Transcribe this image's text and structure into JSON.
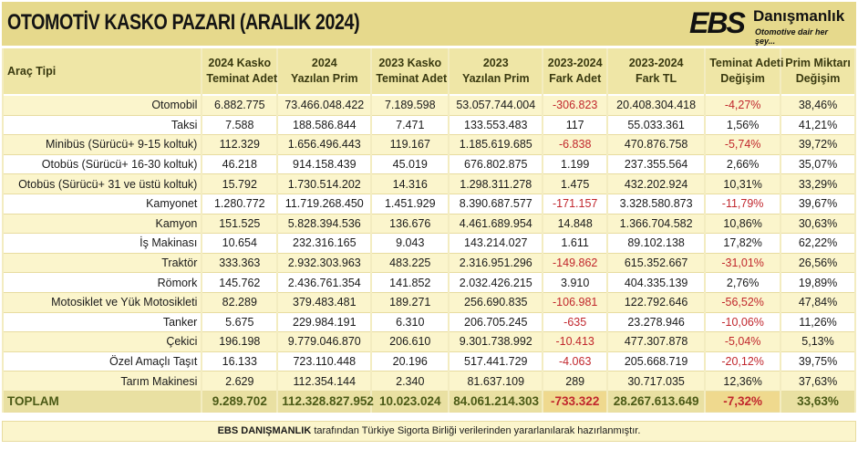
{
  "title": "OTOMOTİV KASKO PAZARI  (ARALIK 2024)",
  "logo": {
    "ebs": "EBS",
    "name": "Danışmanlık",
    "slogan": "Otomotive dair her şey..."
  },
  "table": {
    "headers": [
      {
        "line1": "Araç Tipi",
        "line2": ""
      },
      {
        "line1": "2024 Kasko",
        "line2": "Teminat Adet"
      },
      {
        "line1": "2024",
        "line2": "Yazılan Prim"
      },
      {
        "line1": "2023 Kasko",
        "line2": "Teminat Adet"
      },
      {
        "line1": "2023",
        "line2": "Yazılan Prim"
      },
      {
        "line1": "2023-2024",
        "line2": "Fark Adet"
      },
      {
        "line1": "2023-2024",
        "line2": "Fark TL"
      },
      {
        "line1": "Teminat Adeti",
        "line2": "Değişim"
      },
      {
        "line1": "Prim Miktarı",
        "line2": "Değişim"
      }
    ],
    "rows": [
      [
        "Otomobil",
        "6.882.775",
        "73.466.048.422",
        "7.189.598",
        "53.057.744.004",
        "-306.823",
        "20.408.304.418",
        "-4,27%",
        "38,46%"
      ],
      [
        "Taksi",
        "7.588",
        "188.586.844",
        "7.471",
        "133.553.483",
        "117",
        "55.033.361",
        "1,56%",
        "41,21%"
      ],
      [
        "Minibüs (Sürücü+ 9-15 koltuk)",
        "112.329",
        "1.656.496.443",
        "119.167",
        "1.185.619.685",
        "-6.838",
        "470.876.758",
        "-5,74%",
        "39,72%"
      ],
      [
        "Otobüs (Sürücü+ 16-30 koltuk)",
        "46.218",
        "914.158.439",
        "45.019",
        "676.802.875",
        "1.199",
        "237.355.564",
        "2,66%",
        "35,07%"
      ],
      [
        "Otobüs (Sürücü+ 31 ve üstü koltuk)",
        "15.792",
        "1.730.514.202",
        "14.316",
        "1.298.311.278",
        "1.475",
        "432.202.924",
        "10,31%",
        "33,29%"
      ],
      [
        "Kamyonet",
        "1.280.772",
        "11.719.268.450",
        "1.451.929",
        "8.390.687.577",
        "-171.157",
        "3.328.580.873",
        "-11,79%",
        "39,67%"
      ],
      [
        "Kamyon",
        "151.525",
        "5.828.394.536",
        "136.676",
        "4.461.689.954",
        "14.848",
        "1.366.704.582",
        "10,86%",
        "30,63%"
      ],
      [
        "İş Makinası",
        "10.654",
        "232.316.165",
        "9.043",
        "143.214.027",
        "1.611",
        "89.102.138",
        "17,82%",
        "62,22%"
      ],
      [
        "Traktör",
        "333.363",
        "2.932.303.963",
        "483.225",
        "2.316.951.296",
        "-149.862",
        "615.352.667",
        "-31,01%",
        "26,56%"
      ],
      [
        "Römork",
        "145.762",
        "2.436.761.354",
        "141.852",
        "2.032.426.215",
        "3.910",
        "404.335.139",
        "2,76%",
        "19,89%"
      ],
      [
        "Motosiklet ve Yük Motosikleti",
        "82.289",
        "379.483.481",
        "189.271",
        "256.690.835",
        "-106.981",
        "122.792.646",
        "-56,52%",
        "47,84%"
      ],
      [
        "Tanker",
        "5.675",
        "229.984.191",
        "6.310",
        "206.705.245",
        "-635",
        "23.278.946",
        "-10,06%",
        "11,26%"
      ],
      [
        "Çekici",
        "196.198",
        "9.779.046.870",
        "206.610",
        "9.301.738.992",
        "-10.413",
        "477.307.878",
        "-5,04%",
        "5,13%"
      ],
      [
        "Özel Amaçlı Taşıt",
        "16.133",
        "723.110.448",
        "20.196",
        "517.441.729",
        "-4.063",
        "205.668.719",
        "-20,12%",
        "39,75%"
      ],
      [
        "Tarım Makinesi",
        "2.629",
        "112.354.144",
        "2.340",
        "81.637.109",
        "289",
        "30.717.035",
        "12,36%",
        "37,63%"
      ]
    ],
    "total": [
      "TOPLAM",
      "9.289.702",
      "112.328.827.952",
      "10.023.024",
      "84.061.214.303",
      "-733.322",
      "28.267.613.649",
      "-7,32%",
      "33,63%"
    ]
  },
  "footer": {
    "brand": "EBS DANIŞMANLIK",
    "text": " tarafından Türkiye Sigorta Birliği verilerinden yararlanılarak hazırlanmıştır."
  },
  "colors": {
    "header_bg": "#e6d98c",
    "negative": "#c1272d",
    "total_text": "#4b5a16"
  }
}
